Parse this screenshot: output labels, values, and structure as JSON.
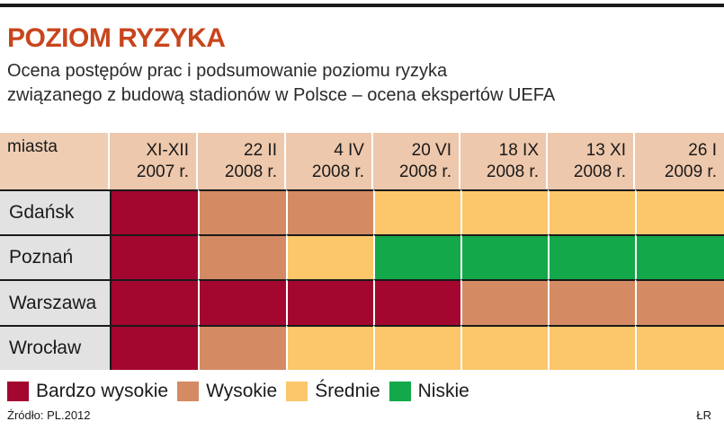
{
  "title": "POZIOM RYZYKA",
  "subtitle_line1": "Ocena postępów prac i podsumowanie poziomu ryzyka",
  "subtitle_line2": "związanego z budową stadionów w Polsce – ocena ekspertów UEFA",
  "source": "Źródło: PL.2012",
  "credit": "ŁR",
  "colors": {
    "bardzo_wysokie": "#a3072f",
    "wysokie": "#d48b63",
    "srednie": "#fbc76a",
    "niskie": "#13a84a",
    "title": "#c8451c",
    "header_bg": "#eec8ac",
    "city_bg": "#e2e2e2"
  },
  "chart_data": {
    "type": "table",
    "row_header_label": "miasta",
    "columns": [
      {
        "line1": "XI-XII",
        "line2": "2007 r."
      },
      {
        "line1": "22 II",
        "line2": "2008 r."
      },
      {
        "line1": "4 IV",
        "line2": "2008 r."
      },
      {
        "line1": "20 VI",
        "line2": "2008 r."
      },
      {
        "line1": "18 IX",
        "line2": "2008 r."
      },
      {
        "line1": "13 XI",
        "line2": "2008 r."
      },
      {
        "line1": "26 I",
        "line2": "2009 r."
      }
    ],
    "rows": [
      {
        "city": "Gdańsk",
        "levels": [
          "bardzo_wysokie",
          "wysokie",
          "wysokie",
          "srednie",
          "srednie",
          "srednie",
          "srednie"
        ]
      },
      {
        "city": "Poznań",
        "levels": [
          "bardzo_wysokie",
          "wysokie",
          "srednie",
          "niskie",
          "niskie",
          "niskie",
          "niskie"
        ]
      },
      {
        "city": "Warszawa",
        "levels": [
          "bardzo_wysokie",
          "bardzo_wysokie",
          "bardzo_wysokie",
          "bardzo_wysokie",
          "wysokie",
          "wysokie",
          "wysokie"
        ]
      },
      {
        "city": "Wrocław",
        "levels": [
          "bardzo_wysokie",
          "wysokie",
          "srednie",
          "srednie",
          "srednie",
          "srednie",
          "srednie"
        ]
      }
    ],
    "legend": [
      {
        "key": "bardzo_wysokie",
        "label": "Bardzo wysokie"
      },
      {
        "key": "wysokie",
        "label": "Wysokie"
      },
      {
        "key": "srednie",
        "label": "Średnie"
      },
      {
        "key": "niskie",
        "label": "Niskie"
      }
    ]
  }
}
